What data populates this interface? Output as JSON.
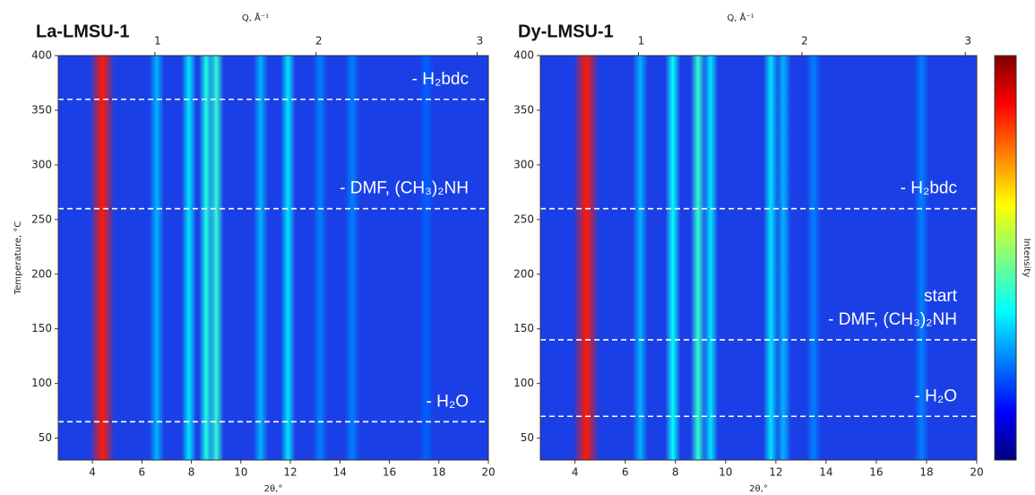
{
  "chart_data": [
    {
      "type": "heatmap",
      "title": "La-LMSU-1",
      "xlabel": "2θ,°",
      "ylabel": "Temperature, °C",
      "x2label": "Q, Å⁻¹",
      "xlim": [
        2.62,
        20
      ],
      "xticks": [
        4,
        6,
        8,
        10,
        12,
        14,
        16,
        18,
        20
      ],
      "x2lim": [
        0.4,
        3.07
      ],
      "x2ticks": [
        1,
        2,
        3
      ],
      "ylim": [
        30,
        400
      ],
      "yticks": [
        50,
        100,
        150,
        200,
        250,
        300,
        350,
        400
      ],
      "peaks": [
        {
          "x": 4.4,
          "intensity": 0.85
        },
        {
          "x": 6.6,
          "intensity": 0.3
        },
        {
          "x": 7.9,
          "intensity": 0.35
        },
        {
          "x": 8.6,
          "intensity": 0.4
        },
        {
          "x": 9.0,
          "intensity": 0.42
        },
        {
          "x": 10.8,
          "intensity": 0.3
        },
        {
          "x": 11.9,
          "intensity": 0.35
        },
        {
          "x": 13.2,
          "intensity": 0.25
        },
        {
          "x": 14.5,
          "intensity": 0.25
        },
        {
          "x": 17.5,
          "intensity": 0.22
        }
      ],
      "hlines": [
        {
          "value": 360,
          "labels": [
            "- H₂bdc"
          ]
        },
        {
          "value": 260,
          "labels": [
            "- DMF, (CH₃)₂NH"
          ]
        },
        {
          "value": 65,
          "labels": [
            "- H₂O"
          ]
        }
      ]
    },
    {
      "type": "heatmap",
      "title": "Dy-LMSU-1",
      "xlabel": "2θ,°",
      "x2label": "Q, Å⁻¹",
      "xlim": [
        2.62,
        20
      ],
      "xticks": [
        4,
        6,
        8,
        10,
        12,
        14,
        16,
        18,
        20
      ],
      "x2lim": [
        0.4,
        3.07
      ],
      "x2ticks": [
        1,
        2,
        3
      ],
      "ylim": [
        30,
        400
      ],
      "yticks": [
        50,
        100,
        150,
        200,
        250,
        300,
        350,
        400
      ],
      "peaks": [
        {
          "x": 4.45,
          "intensity": 0.85
        },
        {
          "x": 6.6,
          "intensity": 0.3
        },
        {
          "x": 7.9,
          "intensity": 0.38
        },
        {
          "x": 8.9,
          "intensity": 0.42
        },
        {
          "x": 9.4,
          "intensity": 0.35
        },
        {
          "x": 11.8,
          "intensity": 0.35
        },
        {
          "x": 12.3,
          "intensity": 0.3
        },
        {
          "x": 13.5,
          "intensity": 0.25
        },
        {
          "x": 17.8,
          "intensity": 0.25
        }
      ],
      "hlines": [
        {
          "value": 260,
          "labels": [
            "- H₂bdc"
          ]
        },
        {
          "value": 140,
          "labels": [
            "start",
            "- DMF, (CH₃)₂NH"
          ]
        },
        {
          "value": 70,
          "labels": [
            "- H₂O"
          ]
        }
      ],
      "colorbar_label": "Intensity"
    }
  ]
}
